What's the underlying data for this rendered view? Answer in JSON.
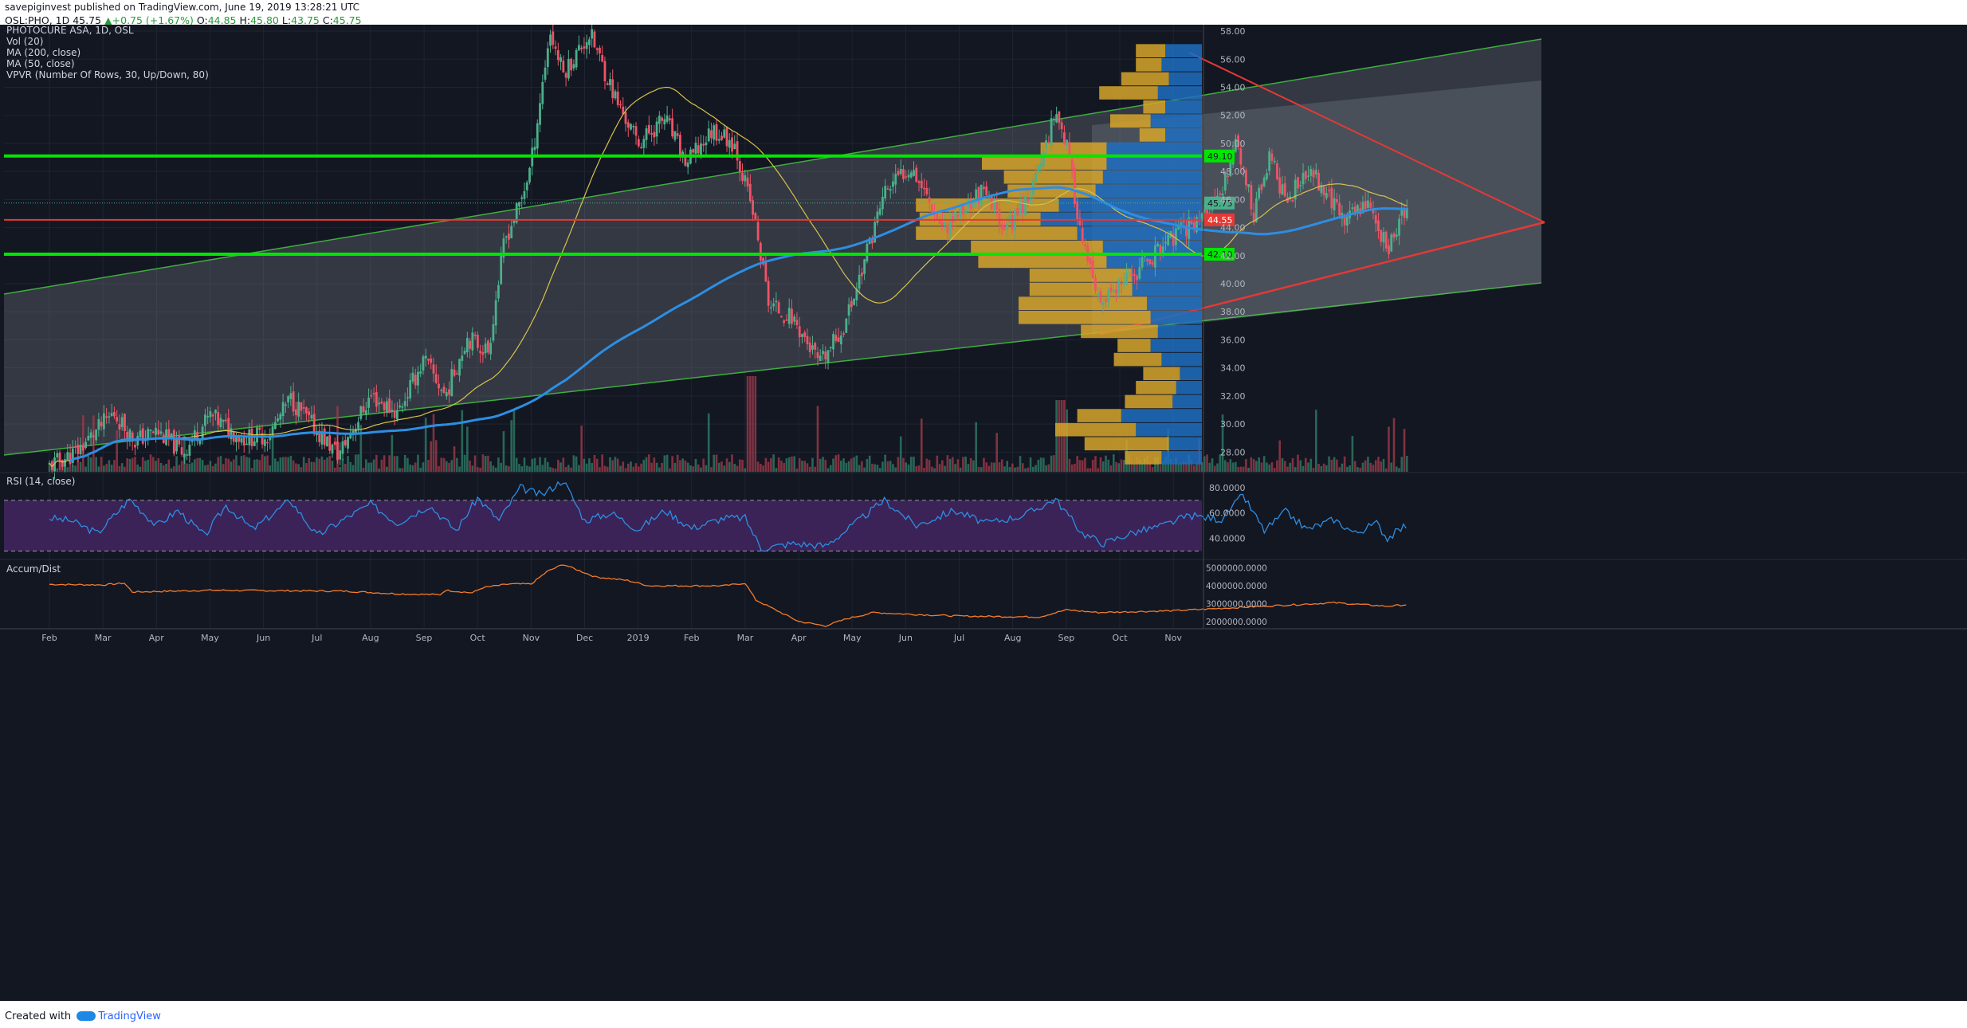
{
  "header": {
    "author": "savepiginvest",
    "published": "published on TradingView.com, June 19, 2019 13:28:21 UTC",
    "symbol": "OSL:PHO, 1D",
    "last": "45.75",
    "change": "+0.75 (+1.67%)",
    "open_label": "O:",
    "open": "44.85",
    "high_label": "H:",
    "high": "45.80",
    "low_label": "L:",
    "low": "43.75",
    "close_label": "C:",
    "close": "45.75"
  },
  "legend": [
    "PHOTOCURE ASA, 1D, OSL",
    "Vol (20)",
    "MA (200, close)",
    "MA (50, close)",
    "VPVR (Number Of Rows, 30, Up/Down, 80)"
  ],
  "rsi_label": "RSI (14, close)",
  "ad_label": "Accum/Dist",
  "footer": {
    "created_with": "Created with",
    "brand": "TradingView"
  },
  "colors": {
    "background": "#131722",
    "candle_up": "#4caf8b",
    "candle_down": "#ef5366",
    "ma200": "#2d8ee3",
    "ma50": "#d8c24a",
    "support_resistance": "#00e600",
    "red_line": "#e53935",
    "vpvr_up": "#1e6fbf",
    "vpvr_down": "#d6a52a",
    "rsi_band": "#3b2357",
    "ad_line": "#f57c2a"
  },
  "chart_data": {
    "type": "candlestick",
    "title": "PHOTOCURE ASA, 1D, OSL",
    "x_ticks": [
      "Feb",
      "Mar",
      "Apr",
      "May",
      "Jun",
      "Jul",
      "Aug",
      "Sep",
      "Oct",
      "Nov",
      "Dec",
      "2019",
      "Feb",
      "Mar",
      "Apr",
      "May",
      "Jun",
      "Jul",
      "Aug",
      "Sep",
      "Oct",
      "Nov"
    ],
    "y_ticks": [
      "28.00",
      "30.00",
      "32.00",
      "34.00",
      "36.00",
      "38.00",
      "40.00",
      "42.00",
      "44.00",
      "46.00",
      "48.00",
      "50.00",
      "52.00",
      "54.00",
      "56.00",
      "58.00"
    ],
    "ylim": [
      26.6,
      58.4
    ],
    "price_path": [
      {
        "t": 0,
        "p": 27.0
      },
      {
        "t": 0.5,
        "p": 28.0
      },
      {
        "t": 1.2,
        "p": 30.8
      },
      {
        "t": 1.6,
        "p": 28.8
      },
      {
        "t": 2.0,
        "p": 29.5
      },
      {
        "t": 2.5,
        "p": 28.0
      },
      {
        "t": 3.0,
        "p": 30.6
      },
      {
        "t": 3.6,
        "p": 29.0
      },
      {
        "t": 4.1,
        "p": 29.2
      },
      {
        "t": 4.5,
        "p": 31.8
      },
      {
        "t": 5.0,
        "p": 29.5
      },
      {
        "t": 5.4,
        "p": 27.8
      },
      {
        "t": 6.0,
        "p": 32.0
      },
      {
        "t": 6.5,
        "p": 30.8
      },
      {
        "t": 7.0,
        "p": 34.6
      },
      {
        "t": 7.4,
        "p": 32.0
      },
      {
        "t": 7.8,
        "p": 36.2
      },
      {
        "t": 8.2,
        "p": 35.2
      },
      {
        "t": 8.5,
        "p": 43.0
      },
      {
        "t": 8.8,
        "p": 45.8
      },
      {
        "t": 9.0,
        "p": 48.5
      },
      {
        "t": 9.35,
        "p": 58.0
      },
      {
        "t": 9.6,
        "p": 55.0
      },
      {
        "t": 10.1,
        "p": 57.8
      },
      {
        "t": 10.6,
        "p": 53.0
      },
      {
        "t": 11.0,
        "p": 50.0
      },
      {
        "t": 11.5,
        "p": 51.8
      },
      {
        "t": 11.9,
        "p": 48.5
      },
      {
        "t": 12.4,
        "p": 51.0
      },
      {
        "t": 12.8,
        "p": 50.0
      },
      {
        "t": 13.15,
        "p": 45.0
      },
      {
        "t": 13.45,
        "p": 38.5
      },
      {
        "t": 13.9,
        "p": 37.5
      },
      {
        "t": 14.4,
        "p": 34.2
      },
      {
        "t": 14.85,
        "p": 37.0
      },
      {
        "t": 15.1,
        "p": 40.0
      },
      {
        "t": 15.6,
        "p": 46.5
      },
      {
        "t": 16.1,
        "p": 48.5
      },
      {
        "t": 16.7,
        "p": 44.0
      },
      {
        "t": 17.4,
        "p": 46.5
      },
      {
        "t": 17.9,
        "p": 44.0
      },
      {
        "t": 18.4,
        "p": 47.0
      },
      {
        "t": 18.8,
        "p": 52.5
      },
      {
        "t": 19.0,
        "p": 50.0
      },
      {
        "t": 19.3,
        "p": 43.0
      },
      {
        "t": 19.6,
        "p": 38.5
      },
      {
        "t": 20.1,
        "p": 40.0
      },
      {
        "t": 20.6,
        "p": 42.0
      },
      {
        "t": 20.9,
        "p": 43.0
      },
      {
        "t": 21.4,
        "p": 44.5
      },
      {
        "t": 21.9,
        "p": 46.0
      },
      {
        "t": 22.15,
        "p": 50.5
      },
      {
        "t": 22.5,
        "p": 45.0
      },
      {
        "t": 22.8,
        "p": 49.0
      },
      {
        "t": 23.1,
        "p": 46.0
      },
      {
        "t": 23.6,
        "p": 48.0
      },
      {
        "t": 24.2,
        "p": 44.5
      },
      {
        "t": 24.6,
        "p": 46.0
      },
      {
        "t": 25.0,
        "p": 42.5
      },
      {
        "t": 25.4,
        "p": 45.75
      }
    ],
    "horizontal_levels": [
      {
        "price": 49.1,
        "label": "49.10",
        "color": "#00e600"
      },
      {
        "price": 44.55,
        "label": "44.55",
        "color": "#e53935"
      },
      {
        "price": 42.1,
        "label": "42.10",
        "color": "#00e600"
      }
    ],
    "last_price_label": "45.75",
    "ma200_label": "MA (200, close)",
    "ma50_label": "MA (50, close)",
    "vpvr_rows": [
      {
        "price": 27.6,
        "up": 0.55,
        "down": 0.5
      },
      {
        "price": 28.6,
        "up": 0.45,
        "down": 1.15
      },
      {
        "price": 29.6,
        "up": 0.9,
        "down": 1.1
      },
      {
        "price": 30.6,
        "up": 1.1,
        "down": 0.6
      },
      {
        "price": 31.6,
        "up": 0.4,
        "down": 0.65
      },
      {
        "price": 32.6,
        "up": 0.35,
        "down": 0.55
      },
      {
        "price": 33.6,
        "up": 0.3,
        "down": 0.5
      },
      {
        "price": 34.6,
        "up": 0.55,
        "down": 0.65
      },
      {
        "price": 35.6,
        "up": 0.7,
        "down": 0.45
      },
      {
        "price": 36.6,
        "up": 0.6,
        "down": 1.05
      },
      {
        "price": 37.6,
        "up": 0.7,
        "down": 1.8
      },
      {
        "price": 38.6,
        "up": 0.75,
        "down": 1.75
      },
      {
        "price": 39.6,
        "up": 0.95,
        "down": 1.4
      },
      {
        "price": 40.6,
        "up": 0.95,
        "down": 1.4
      },
      {
        "price": 41.6,
        "up": 1.3,
        "down": 1.75
      },
      {
        "price": 42.6,
        "up": 1.35,
        "down": 1.8
      },
      {
        "price": 43.6,
        "up": 1.7,
        "down": 2.2
      },
      {
        "price": 44.6,
        "up": 2.2,
        "down": 1.65
      },
      {
        "price": 45.6,
        "up": 1.95,
        "down": 1.95
      },
      {
        "price": 46.6,
        "up": 1.45,
        "down": 1.2
      },
      {
        "price": 47.6,
        "up": 1.35,
        "down": 1.35
      },
      {
        "price": 48.6,
        "up": 1.3,
        "down": 1.7
      },
      {
        "price": 49.6,
        "up": 1.3,
        "down": 0.9
      },
      {
        "price": 50.6,
        "up": 0.5,
        "down": 0.35
      },
      {
        "price": 51.6,
        "up": 0.7,
        "down": 0.55
      },
      {
        "price": 52.6,
        "up": 0.5,
        "down": 0.3
      },
      {
        "price": 53.6,
        "up": 0.6,
        "down": 0.8
      },
      {
        "price": 54.6,
        "up": 0.45,
        "down": 0.65
      },
      {
        "price": 55.6,
        "up": 0.55,
        "down": 0.35
      },
      {
        "price": 56.6,
        "up": 0.5,
        "down": 0.4
      }
    ],
    "rsi": {
      "label": "RSI (14, close)",
      "ylim": [
        24,
        90
      ],
      "band": [
        30,
        70
      ],
      "y_ticks": [
        "40.0000",
        "60.0000",
        "80.0000"
      ],
      "path": [
        {
          "t": 0,
          "p": 56
        },
        {
          "t": 0.4,
          "p": 54
        },
        {
          "t": 0.9,
          "p": 44
        },
        {
          "t": 1.5,
          "p": 71
        },
        {
          "t": 2.0,
          "p": 50
        },
        {
          "t": 2.4,
          "p": 62
        },
        {
          "t": 2.9,
          "p": 42
        },
        {
          "t": 3.3,
          "p": 66
        },
        {
          "t": 3.8,
          "p": 47
        },
        {
          "t": 4.5,
          "p": 70
        },
        {
          "t": 5.0,
          "p": 42
        },
        {
          "t": 5.5,
          "p": 55
        },
        {
          "t": 6.0,
          "p": 67
        },
        {
          "t": 6.5,
          "p": 52
        },
        {
          "t": 7.1,
          "p": 66
        },
        {
          "t": 7.6,
          "p": 46
        },
        {
          "t": 8.0,
          "p": 72
        },
        {
          "t": 8.4,
          "p": 54
        },
        {
          "t": 8.8,
          "p": 80
        },
        {
          "t": 9.2,
          "p": 74
        },
        {
          "t": 9.6,
          "p": 86
        },
        {
          "t": 10.0,
          "p": 54
        },
        {
          "t": 10.5,
          "p": 60
        },
        {
          "t": 11.0,
          "p": 47
        },
        {
          "t": 11.5,
          "p": 62
        },
        {
          "t": 12.0,
          "p": 48
        },
        {
          "t": 12.6,
          "p": 56
        },
        {
          "t": 13.0,
          "p": 56
        },
        {
          "t": 13.3,
          "p": 32
        },
        {
          "t": 13.9,
          "p": 36
        },
        {
          "t": 14.5,
          "p": 34
        },
        {
          "t": 15.0,
          "p": 50
        },
        {
          "t": 15.6,
          "p": 70
        },
        {
          "t": 16.2,
          "p": 50
        },
        {
          "t": 16.9,
          "p": 62
        },
        {
          "t": 17.5,
          "p": 52
        },
        {
          "t": 18.2,
          "p": 58
        },
        {
          "t": 18.8,
          "p": 71
        },
        {
          "t": 19.3,
          "p": 44
        },
        {
          "t": 19.7,
          "p": 36
        },
        {
          "t": 20.2,
          "p": 44
        },
        {
          "t": 20.8,
          "p": 50
        },
        {
          "t": 21.3,
          "p": 58
        },
        {
          "t": 21.9,
          "p": 55
        },
        {
          "t": 22.3,
          "p": 74
        },
        {
          "t": 22.7,
          "p": 46
        },
        {
          "t": 23.1,
          "p": 61
        },
        {
          "t": 23.5,
          "p": 47
        },
        {
          "t": 24.0,
          "p": 55
        },
        {
          "t": 24.4,
          "p": 44
        },
        {
          "t": 24.8,
          "p": 52
        },
        {
          "t": 25.0,
          "p": 40
        },
        {
          "t": 25.4,
          "p": 52
        }
      ]
    },
    "accum_dist": {
      "label": "Accum/Dist",
      "ylim": [
        1500000,
        5300000
      ],
      "y_ticks": [
        "2000000.0000",
        "3000000.0000",
        "4000000.0000",
        "5000000.0000"
      ],
      "path": [
        {
          "t": 0,
          "p": 4080000
        },
        {
          "t": 1.0,
          "p": 4050000
        },
        {
          "t": 1.4,
          "p": 4150000
        },
        {
          "t": 1.55,
          "p": 3650000
        },
        {
          "t": 3.0,
          "p": 3750000
        },
        {
          "t": 5.5,
          "p": 3700000
        },
        {
          "t": 6.5,
          "p": 3550000
        },
        {
          "t": 7.3,
          "p": 3500000
        },
        {
          "t": 7.4,
          "p": 3750000
        },
        {
          "t": 7.9,
          "p": 3600000
        },
        {
          "t": 8.1,
          "p": 3900000
        },
        {
          "t": 8.6,
          "p": 4100000
        },
        {
          "t": 9.0,
          "p": 4100000
        },
        {
          "t": 9.3,
          "p": 4800000
        },
        {
          "t": 9.6,
          "p": 5200000
        },
        {
          "t": 10.2,
          "p": 4500000
        },
        {
          "t": 10.8,
          "p": 4300000
        },
        {
          "t": 11.2,
          "p": 4000000
        },
        {
          "t": 12.6,
          "p": 4000000
        },
        {
          "t": 13.0,
          "p": 4150000
        },
        {
          "t": 13.2,
          "p": 3200000
        },
        {
          "t": 13.6,
          "p": 2600000
        },
        {
          "t": 14.0,
          "p": 2000000
        },
        {
          "t": 14.5,
          "p": 1750000
        },
        {
          "t": 14.9,
          "p": 2150000
        },
        {
          "t": 15.4,
          "p": 2500000
        },
        {
          "t": 16.1,
          "p": 2400000
        },
        {
          "t": 17.0,
          "p": 2300000
        },
        {
          "t": 18.5,
          "p": 2250000
        },
        {
          "t": 19.0,
          "p": 2650000
        },
        {
          "t": 19.6,
          "p": 2500000
        },
        {
          "t": 21.0,
          "p": 2600000
        },
        {
          "t": 22.0,
          "p": 2750000
        },
        {
          "t": 23.0,
          "p": 2900000
        },
        {
          "t": 24.0,
          "p": 3050000
        },
        {
          "t": 25.0,
          "p": 2850000
        },
        {
          "t": 25.4,
          "p": 2950000
        }
      ]
    }
  }
}
